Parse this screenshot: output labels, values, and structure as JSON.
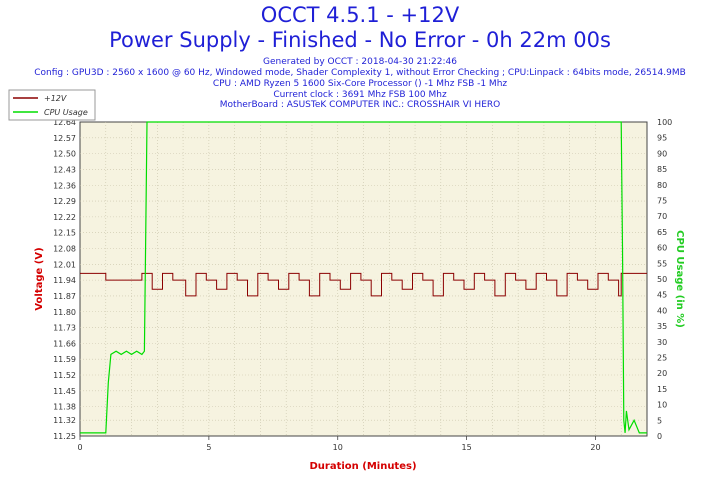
{
  "header": {
    "title_line1": "OCCT 4.5.1 - +12V",
    "title_line2": "Power Supply - Finished - No Error - 0h 22m 00s",
    "generated": "Generated by OCCT : 2018-04-30 21:22:46",
    "config": "Config : GPU3D : 2560 x 1600 @ 60 Hz, Windowed mode, Shader Complexity 1, without Error Checking ; CPU:Linpack : 64bits mode, 26514.9MB",
    "cpu": "CPU : AMD Ryzen 5 1600 Six-Core Processor () -1 Mhz FSB -1 Mhz",
    "clock": "Current clock : 3691 Mhz FSB 100 Mhz",
    "motherboard": "MotherBoard : ASUSTeK COMPUTER INC.: CROSSHAIR VI HERO"
  },
  "colors": {
    "voltage": "#8b0000",
    "cpu_usage": "#00dd00",
    "plot_bg": "#f6f3e0",
    "title": "#1f1fd6",
    "axis_label": "#d40000"
  },
  "chart_data": {
    "type": "line",
    "xlabel": "Duration (Minutes)",
    "ylabel": "Voltage (V)",
    "y2label": "CPU Usage (in %)",
    "xlim": [
      0,
      22
    ],
    "ylim": [
      11.25,
      12.64
    ],
    "y2lim": [
      0,
      100
    ],
    "grid": true,
    "legend_position": "top-left",
    "x_ticks": [
      0,
      5,
      10,
      15,
      20
    ],
    "y_ticks": [
      "11.25",
      "11.32",
      "11.38",
      "11.45",
      "11.52",
      "11.59",
      "11.66",
      "11.73",
      "11.80",
      "11.87",
      "11.94",
      "12.01",
      "12.08",
      "12.15",
      "12.22",
      "12.29",
      "12.36",
      "12.43",
      "12.50",
      "12.57",
      "12.64"
    ],
    "y2_ticks": [
      0,
      5,
      10,
      15,
      20,
      25,
      30,
      35,
      40,
      45,
      50,
      55,
      60,
      65,
      70,
      75,
      80,
      85,
      90,
      95,
      100
    ],
    "series": [
      {
        "name": "+12V",
        "axis": "left",
        "x": [
          0,
          1,
          1,
          2.4,
          2.8,
          3.2,
          3.6,
          4.1,
          4.5,
          4.9,
          5.3,
          5.7,
          6.1,
          6.5,
          6.9,
          7.3,
          7.7,
          8.1,
          8.5,
          8.9,
          9.3,
          9.7,
          10.1,
          10.5,
          10.9,
          11.3,
          11.7,
          12.1,
          12.5,
          12.9,
          13.3,
          13.7,
          14.1,
          14.5,
          14.9,
          15.3,
          15.7,
          16.1,
          16.5,
          16.9,
          17.3,
          17.7,
          18.1,
          18.5,
          18.9,
          19.3,
          19.7,
          20.1,
          20.5,
          20.9,
          21.0,
          22.0
        ],
        "y": [
          11.97,
          11.97,
          11.94,
          11.97,
          11.9,
          11.97,
          11.94,
          11.87,
          11.97,
          11.94,
          11.9,
          11.97,
          11.94,
          11.87,
          11.97,
          11.94,
          11.9,
          11.97,
          11.94,
          11.87,
          11.97,
          11.94,
          11.9,
          11.97,
          11.94,
          11.87,
          11.97,
          11.94,
          11.9,
          11.97,
          11.94,
          11.87,
          11.97,
          11.94,
          11.9,
          11.97,
          11.94,
          11.87,
          11.97,
          11.94,
          11.9,
          11.97,
          11.94,
          11.87,
          11.97,
          11.94,
          11.9,
          11.97,
          11.94,
          11.87,
          11.97,
          11.97
        ]
      },
      {
        "name": "CPU Usage",
        "axis": "right",
        "x": [
          0,
          1.0,
          1.1,
          1.2,
          1.4,
          1.6,
          1.8,
          2.0,
          2.2,
          2.4,
          2.5,
          2.6,
          20.9,
          21.0,
          21.05,
          21.1,
          21.15,
          21.2,
          21.3,
          21.5,
          21.7,
          22.0
        ],
        "y": [
          1,
          1,
          17,
          26,
          27,
          26,
          27,
          26,
          27,
          26,
          27,
          100,
          100,
          100,
          60,
          5,
          1,
          8,
          2,
          5,
          1,
          1
        ]
      }
    ]
  }
}
